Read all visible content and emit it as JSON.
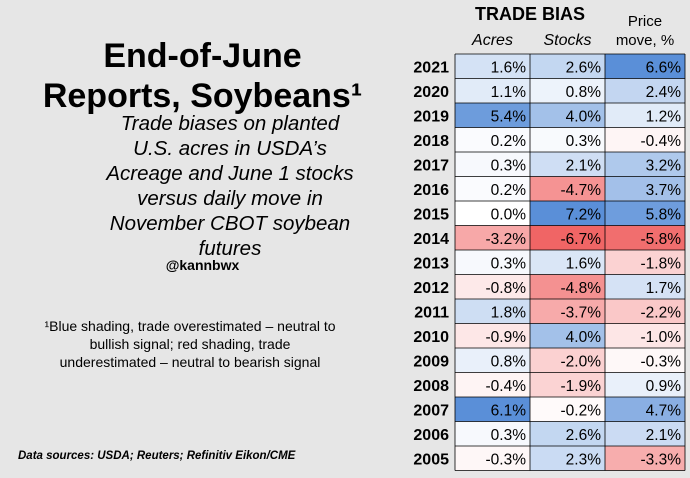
{
  "left": {
    "title_line1": "End-of-June",
    "title_line2": "Reports, Soybeans¹",
    "subtitle": "Trade biases on planted U.S. acres in USDA’s Acreage and June 1 stocks versus daily move in November CBOT soybean futures",
    "handle": "@kannbwx",
    "footnote": "¹Blue shading, trade overestimated – neutral to bullish signal; red shading, trade underestimated – neutral to bearish signal",
    "sources": "Data sources: USDA; Reuters; Refinitiv Eikon/CME"
  },
  "colors": {
    "blue_max": "#5a8fd8",
    "red_max": "#ef5a5a",
    "neutral": "#ffffff",
    "background": "#e6e6e6"
  },
  "chart_data": {
    "type": "table",
    "title": "TRADE BIAS",
    "columns": [
      "Acres",
      "Stocks",
      "Price move, %"
    ],
    "column_header_price_line1": "Price",
    "column_header_price_line2": "move, %",
    "rows": [
      {
        "year": "2021",
        "acres": 1.6,
        "stocks": 2.6,
        "price": 6.6
      },
      {
        "year": "2020",
        "acres": 1.1,
        "stocks": 0.8,
        "price": 2.4
      },
      {
        "year": "2019",
        "acres": 5.4,
        "stocks": 4.0,
        "price": 1.2
      },
      {
        "year": "2018",
        "acres": 0.2,
        "stocks": 0.3,
        "price": -0.4
      },
      {
        "year": "2017",
        "acres": 0.3,
        "stocks": 2.1,
        "price": 3.2
      },
      {
        "year": "2016",
        "acres": 0.2,
        "stocks": -4.7,
        "price": 3.7
      },
      {
        "year": "2015",
        "acres": 0.0,
        "stocks": 7.2,
        "price": 5.8
      },
      {
        "year": "2014",
        "acres": -3.2,
        "stocks": -6.7,
        "price": -5.8
      },
      {
        "year": "2013",
        "acres": 0.3,
        "stocks": 1.6,
        "price": -1.8
      },
      {
        "year": "2012",
        "acres": -0.8,
        "stocks": -4.8,
        "price": 1.7
      },
      {
        "year": "2011",
        "acres": 1.8,
        "stocks": -3.7,
        "price": -2.2
      },
      {
        "year": "2010",
        "acres": -0.9,
        "stocks": 4.0,
        "price": -1.0
      },
      {
        "year": "2009",
        "acres": 0.8,
        "stocks": -2.0,
        "price": -0.3
      },
      {
        "year": "2008",
        "acres": -0.4,
        "stocks": -1.9,
        "price": 0.9
      },
      {
        "year": "2007",
        "acres": 6.1,
        "stocks": -0.2,
        "price": 4.7
      },
      {
        "year": "2006",
        "acres": 0.3,
        "stocks": 2.6,
        "price": 2.1
      },
      {
        "year": "2005",
        "acres": -0.3,
        "stocks": 2.3,
        "price": -3.3
      }
    ]
  }
}
